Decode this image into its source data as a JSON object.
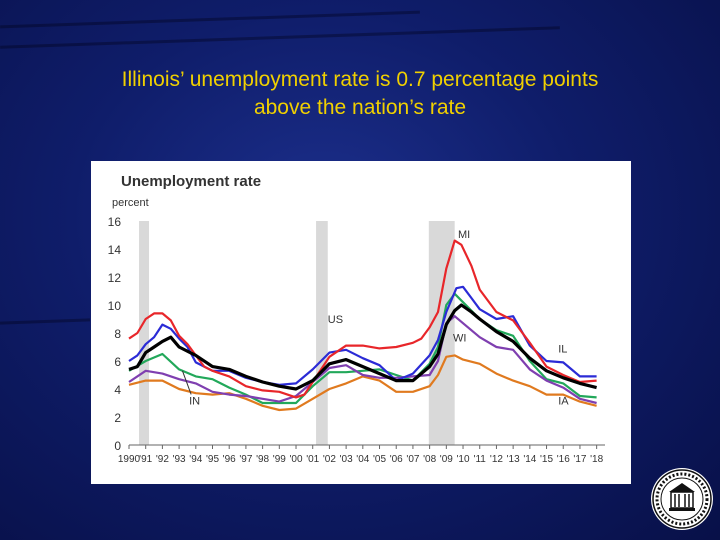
{
  "slide": {
    "title_line1": "Illinois’ unemployment rate is 0.7 percentage points",
    "title_line2": "above the nation’s rate"
  },
  "colors": {
    "background": "#0f1d6a",
    "title": "#f0d000",
    "MI": "#e8262a",
    "IL": "#2b2bd6",
    "US": "#000000",
    "WI": "#7f3fb0",
    "IN": "#22a85a",
    "IA": "#e07a1f",
    "recession": "#d9d9d9"
  },
  "chart_data": {
    "type": "line",
    "title": "Unemployment rate",
    "ylabel": "percent",
    "xlabel": "",
    "ylim": [
      0,
      16
    ],
    "xlim": [
      1990,
      2018.5
    ],
    "y_ticks": [
      "0",
      "2",
      "4",
      "6",
      "8",
      "10",
      "12",
      "14",
      "16"
    ],
    "x_tick_labels": [
      "1990",
      "'91",
      "'92",
      "'93",
      "'94",
      "'95",
      "'96",
      "'97",
      "'98",
      "'99",
      "'00",
      "'01",
      "'02",
      "'03",
      "'04",
      "'05",
      "'06",
      "'07",
      "'08",
      "'09",
      "'10",
      "'11",
      "'12",
      "'13",
      "'14",
      "'15",
      "'16",
      "'17",
      "'18"
    ],
    "recessions": [
      [
        1990.6,
        1991.2
      ],
      [
        2001.2,
        2001.9
      ],
      [
        2007.95,
        2009.5
      ]
    ],
    "grid": false,
    "legend": "inline labels",
    "series": [
      {
        "name": "MI",
        "color": "#e8262a",
        "label_at": [
          2009.7,
          14.8
        ],
        "points": [
          [
            1990,
            7.6
          ],
          [
            1990.5,
            8.0
          ],
          [
            1991,
            9.0
          ],
          [
            1991.5,
            9.4
          ],
          [
            1992,
            9.4
          ],
          [
            1992.5,
            8.9
          ],
          [
            1993,
            7.8
          ],
          [
            1993.5,
            7.2
          ],
          [
            1994,
            6.4
          ],
          [
            1994.5,
            5.6
          ],
          [
            1995,
            5.3
          ],
          [
            1996,
            4.9
          ],
          [
            1997,
            4.2
          ],
          [
            1998,
            3.9
          ],
          [
            1999,
            3.8
          ],
          [
            2000,
            3.4
          ],
          [
            2000.5,
            3.6
          ],
          [
            2001,
            4.5
          ],
          [
            2001.5,
            5.4
          ],
          [
            2002,
            6.3
          ],
          [
            2003,
            7.1
          ],
          [
            2004,
            7.1
          ],
          [
            2005,
            6.9
          ],
          [
            2006,
            7.0
          ],
          [
            2007,
            7.3
          ],
          [
            2007.5,
            7.6
          ],
          [
            2008,
            8.4
          ],
          [
            2008.5,
            9.5
          ],
          [
            2009,
            12.6
          ],
          [
            2009.5,
            14.6
          ],
          [
            2009.9,
            14.3
          ],
          [
            2010.5,
            12.8
          ],
          [
            2011,
            11.1
          ],
          [
            2012,
            9.5
          ],
          [
            2013,
            8.9
          ],
          [
            2014,
            7.3
          ],
          [
            2015,
            5.6
          ],
          [
            2016,
            5.0
          ],
          [
            2017,
            4.5
          ],
          [
            2018,
            4.6
          ]
        ]
      },
      {
        "name": "IL",
        "color": "#2b2bd6",
        "label_at": [
          2015.7,
          6.6
        ],
        "points": [
          [
            1990,
            6.0
          ],
          [
            1990.5,
            6.4
          ],
          [
            1991,
            7.2
          ],
          [
            1991.5,
            7.7
          ],
          [
            1992,
            8.6
          ],
          [
            1992.5,
            8.3
          ],
          [
            1993,
            7.6
          ],
          [
            1993.5,
            7.0
          ],
          [
            1994,
            5.9
          ],
          [
            1995,
            5.3
          ],
          [
            1996,
            5.3
          ],
          [
            1997,
            4.8
          ],
          [
            1998,
            4.5
          ],
          [
            1999,
            4.3
          ],
          [
            2000,
            4.4
          ],
          [
            2001,
            5.4
          ],
          [
            2002,
            6.6
          ],
          [
            2003,
            6.8
          ],
          [
            2004,
            6.2
          ],
          [
            2005,
            5.7
          ],
          [
            2006,
            4.6
          ],
          [
            2007,
            5.1
          ],
          [
            2008,
            6.4
          ],
          [
            2008.5,
            7.5
          ],
          [
            2009,
            9.5
          ],
          [
            2009.6,
            11.2
          ],
          [
            2010,
            11.3
          ],
          [
            2010.5,
            10.5
          ],
          [
            2011,
            9.7
          ],
          [
            2012,
            9.0
          ],
          [
            2013,
            9.2
          ],
          [
            2014,
            7.1
          ],
          [
            2015,
            6.0
          ],
          [
            2016,
            5.9
          ],
          [
            2017,
            4.9
          ],
          [
            2018,
            4.9
          ]
        ]
      },
      {
        "name": "US",
        "color": "#000000",
        "label_at": [
          2001.9,
          8.7
        ],
        "points": [
          [
            1990,
            5.4
          ],
          [
            1990.5,
            5.6
          ],
          [
            1991,
            6.6
          ],
          [
            1991.5,
            7.0
          ],
          [
            1992,
            7.4
          ],
          [
            1992.5,
            7.7
          ],
          [
            1993,
            7.0
          ],
          [
            1994,
            6.4
          ],
          [
            1995,
            5.6
          ],
          [
            1996,
            5.4
          ],
          [
            1997,
            4.9
          ],
          [
            1998,
            4.5
          ],
          [
            1999,
            4.2
          ],
          [
            2000,
            4.0
          ],
          [
            2001,
            4.6
          ],
          [
            2002,
            5.8
          ],
          [
            2003,
            6.1
          ],
          [
            2004,
            5.6
          ],
          [
            2005,
            5.1
          ],
          [
            2006,
            4.6
          ],
          [
            2007,
            4.6
          ],
          [
            2008,
            5.6
          ],
          [
            2008.5,
            6.5
          ],
          [
            2009,
            8.6
          ],
          [
            2009.5,
            9.6
          ],
          [
            2009.9,
            10.0
          ],
          [
            2010.5,
            9.5
          ],
          [
            2011,
            9.0
          ],
          [
            2012,
            8.1
          ],
          [
            2013,
            7.4
          ],
          [
            2014,
            6.2
          ],
          [
            2015,
            5.3
          ],
          [
            2016,
            4.8
          ],
          [
            2017,
            4.4
          ],
          [
            2018,
            4.1
          ]
        ]
      },
      {
        "name": "WI",
        "color": "#7f3fb0",
        "label_at": [
          2009.4,
          7.4
        ],
        "points": [
          [
            1990,
            4.5
          ],
          [
            1991,
            5.3
          ],
          [
            1992,
            5.1
          ],
          [
            1993,
            4.7
          ],
          [
            1994,
            4.4
          ],
          [
            1995,
            3.8
          ],
          [
            1996,
            3.6
          ],
          [
            1997,
            3.5
          ],
          [
            1998,
            3.3
          ],
          [
            1999,
            3.1
          ],
          [
            2000,
            3.5
          ],
          [
            2001,
            4.5
          ],
          [
            2002,
            5.5
          ],
          [
            2003,
            5.7
          ],
          [
            2004,
            5.0
          ],
          [
            2005,
            4.8
          ],
          [
            2006,
            4.8
          ],
          [
            2007,
            4.9
          ],
          [
            2008,
            5.0
          ],
          [
            2008.5,
            6.0
          ],
          [
            2009,
            8.7
          ],
          [
            2009.5,
            9.2
          ],
          [
            2010,
            8.7
          ],
          [
            2011,
            7.7
          ],
          [
            2012,
            7.0
          ],
          [
            2013,
            6.8
          ],
          [
            2014,
            5.4
          ],
          [
            2015,
            4.6
          ],
          [
            2016,
            4.1
          ],
          [
            2017,
            3.3
          ],
          [
            2018,
            3.0
          ]
        ]
      },
      {
        "name": "IN",
        "color": "#22a85a",
        "label_at": [
          1993.6,
          2.9
        ],
        "points": [
          [
            1990,
            5.3
          ],
          [
            1991,
            6.0
          ],
          [
            1992,
            6.5
          ],
          [
            1993,
            5.4
          ],
          [
            1994,
            4.9
          ],
          [
            1995,
            4.7
          ],
          [
            1996,
            4.1
          ],
          [
            1997,
            3.6
          ],
          [
            1998,
            3.0
          ],
          [
            1999,
            3.0
          ],
          [
            2000,
            3.0
          ],
          [
            2001,
            4.2
          ],
          [
            2002,
            5.2
          ],
          [
            2003,
            5.2
          ],
          [
            2004,
            5.3
          ],
          [
            2005,
            5.4
          ],
          [
            2006,
            5.0
          ],
          [
            2007,
            4.6
          ],
          [
            2008,
            5.8
          ],
          [
            2008.5,
            7.0
          ],
          [
            2009,
            10.0
          ],
          [
            2009.5,
            10.8
          ],
          [
            2010,
            10.2
          ],
          [
            2011,
            9.0
          ],
          [
            2012,
            8.2
          ],
          [
            2013,
            7.8
          ],
          [
            2014,
            6.0
          ],
          [
            2015,
            4.7
          ],
          [
            2016,
            4.4
          ],
          [
            2017,
            3.5
          ],
          [
            2018,
            3.4
          ]
        ]
      },
      {
        "name": "IA",
        "color": "#e07a1f",
        "label_at": [
          2015.7,
          2.9
        ],
        "points": [
          [
            1990,
            4.3
          ],
          [
            1991,
            4.6
          ],
          [
            1992,
            4.6
          ],
          [
            1993,
            4.0
          ],
          [
            1994,
            3.7
          ],
          [
            1995,
            3.6
          ],
          [
            1996,
            3.7
          ],
          [
            1997,
            3.3
          ],
          [
            1998,
            2.8
          ],
          [
            1999,
            2.5
          ],
          [
            2000,
            2.6
          ],
          [
            2001,
            3.3
          ],
          [
            2002,
            4.0
          ],
          [
            2003,
            4.4
          ],
          [
            2004,
            4.9
          ],
          [
            2005,
            4.6
          ],
          [
            2006,
            3.8
          ],
          [
            2007,
            3.8
          ],
          [
            2008,
            4.2
          ],
          [
            2008.5,
            5.0
          ],
          [
            2009,
            6.3
          ],
          [
            2009.5,
            6.4
          ],
          [
            2010,
            6.1
          ],
          [
            2011,
            5.8
          ],
          [
            2012,
            5.1
          ],
          [
            2013,
            4.6
          ],
          [
            2014,
            4.2
          ],
          [
            2015,
            3.6
          ],
          [
            2016,
            3.6
          ],
          [
            2017,
            3.1
          ],
          [
            2018,
            2.8
          ]
        ]
      }
    ]
  }
}
